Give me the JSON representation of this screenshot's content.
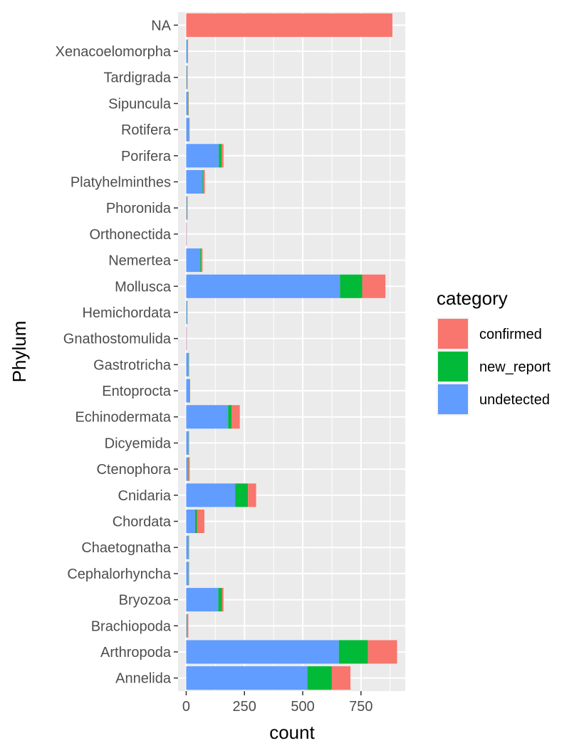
{
  "chart_data": {
    "type": "bar",
    "orientation": "horizontal",
    "stacked": true,
    "xlabel": "count",
    "ylabel": "Phylum",
    "xlim": [
      -35,
      940
    ],
    "x_ticks": [
      0,
      250,
      500,
      750
    ],
    "grid": true,
    "legend_position": "right",
    "legend_title": "category",
    "categories": [
      "Annelida",
      "Arthropoda",
      "Brachiopoda",
      "Bryozoa",
      "Cephalorhyncha",
      "Chaetognatha",
      "Chordata",
      "Cnidaria",
      "Ctenophora",
      "Dicyemida",
      "Echinodermata",
      "Entoprocta",
      "Gastrotricha",
      "Gnathostomulida",
      "Hemichordata",
      "Mollusca",
      "Nemertea",
      "Orthonectida",
      "Phoronida",
      "Platyhelminthes",
      "Porifera",
      "Rotifera",
      "Sipuncula",
      "Tardigrada",
      "Xenacoelomorpha",
      "NA"
    ],
    "series": [
      {
        "name": "undetected",
        "color": "#619CFF",
        "values": [
          520,
          655,
          2,
          138,
          10,
          10,
          38,
          210,
          8,
          10,
          180,
          14,
          10,
          1,
          3,
          660,
          60,
          1,
          2,
          70,
          140,
          12,
          8,
          2,
          4,
          0
        ]
      },
      {
        "name": "new_report",
        "color": "#00BA38",
        "values": [
          105,
          125,
          1,
          15,
          1,
          1,
          8,
          55,
          1,
          1,
          15,
          1,
          1,
          0,
          1,
          95,
          4,
          0,
          1,
          4,
          12,
          1,
          1,
          1,
          1,
          0
        ]
      },
      {
        "name": "confirmed",
        "color": "#F8766D",
        "values": [
          80,
          125,
          6,
          7,
          1,
          1,
          32,
          35,
          6,
          1,
          35,
          1,
          1,
          1,
          1,
          100,
          6,
          1,
          3,
          6,
          8,
          1,
          1,
          3,
          3,
          885
        ]
      }
    ],
    "legend_order": [
      "confirmed",
      "new_report",
      "undetected"
    ]
  }
}
